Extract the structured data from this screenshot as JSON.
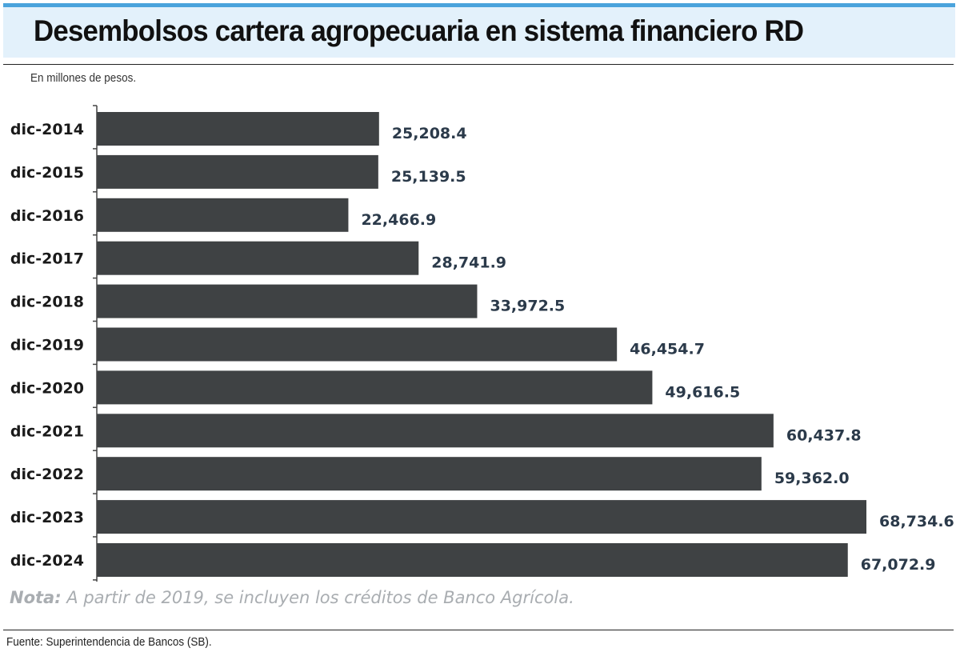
{
  "title": "Desembolsos cartera agropecuaria en sistema financiero RD",
  "subtitle": "En millones de pesos.",
  "note": {
    "label": "Nota:",
    "text": " A partir de 2019, se incluyen los créditos de Banco Agrícola."
  },
  "source": "Fuente: Superintendencia de Bancos (SB).",
  "colors": {
    "bar": "#3f4244",
    "value_text": "#2b3a4a",
    "header_band": "#e3f1fb",
    "header_accent": "#4aa3dc"
  },
  "chart_data": {
    "type": "bar",
    "orientation": "horizontal",
    "categories": [
      "dic-2014",
      "dic-2015",
      "dic-2016",
      "dic-2017",
      "dic-2018",
      "dic-2019",
      "dic-2020",
      "dic-2021",
      "dic-2022",
      "dic-2023",
      "dic-2024"
    ],
    "values": [
      25208.4,
      25139.5,
      22466.9,
      28741.9,
      33972.5,
      46454.7,
      49616.5,
      60437.8,
      59362.0,
      68734.6,
      67072.9
    ],
    "value_labels": [
      "25,208.4",
      "25,139.5",
      "22,466.9",
      "28,741.9",
      "33,972.5",
      "46,454.7",
      "49,616.5",
      "60,437.8",
      "59,362.0",
      "68,734.6",
      "67,072.9"
    ],
    "xlim": [
      0,
      68734.6
    ],
    "grid": false,
    "legend": "none"
  }
}
